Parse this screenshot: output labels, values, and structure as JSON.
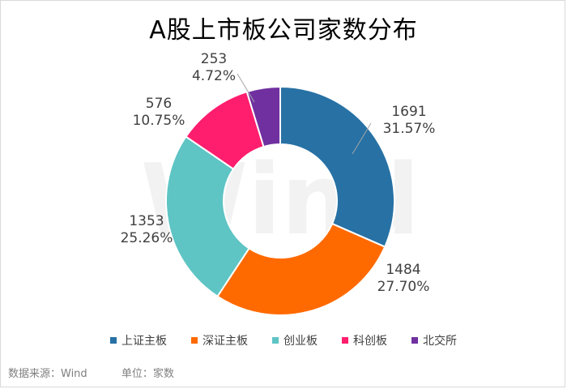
{
  "chart_data": {
    "type": "pie",
    "donut": true,
    "title": "A股上市板公司家数分布",
    "slices": [
      {
        "label": "上证主板",
        "value": 1691,
        "percent": "31.57%",
        "color": "#2771a5"
      },
      {
        "label": "深证主板",
        "value": 1484,
        "percent": "27.70%",
        "color": "#ff6a00"
      },
      {
        "label": "创业板",
        "value": 1353,
        "percent": "25.26%",
        "color": "#5ec4c4"
      },
      {
        "label": "科创板",
        "value": 576,
        "percent": "10.75%",
        "color": "#ff1e6e"
      },
      {
        "label": "北交所",
        "value": 253,
        "percent": "4.72%",
        "color": "#7130a0"
      }
    ],
    "legend_position": "bottom",
    "watermark": "Wind"
  },
  "footer": {
    "source": "数据来源：Wind",
    "unit": "单位：家数"
  }
}
